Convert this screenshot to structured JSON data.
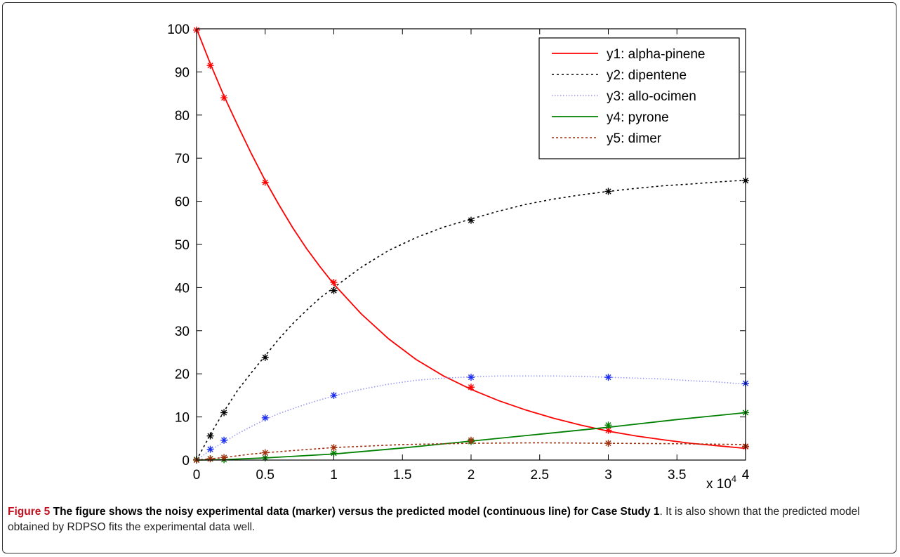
{
  "chart_data": {
    "type": "line",
    "title": "",
    "xlabel": "",
    "ylabel": "",
    "x_multiplier_label": "x 10",
    "x_multiplier_exp": "4",
    "xlim": [
      0,
      4
    ],
    "ylim": [
      0,
      100
    ],
    "xticks": [
      "0",
      "0.5",
      "1",
      "1.5",
      "2",
      "2.5",
      "3",
      "3.5",
      "4"
    ],
    "yticks": [
      "0",
      "10",
      "20",
      "30",
      "40",
      "50",
      "60",
      "70",
      "80",
      "90",
      "100"
    ],
    "legend_position": "top-right",
    "marker_x": [
      0,
      0.1,
      0.2,
      0.5,
      1,
      2,
      3,
      4
    ],
    "series": [
      {
        "name": "y1: alpha-pinene",
        "color": "#ff0000",
        "line_style": "solid",
        "model_x": [
          0,
          0.1,
          0.2,
          0.3,
          0.4,
          0.5,
          0.6,
          0.7,
          0.8,
          0.9,
          1.0,
          1.2,
          1.4,
          1.6,
          1.8,
          2.0,
          2.2,
          2.4,
          2.6,
          2.8,
          3.0,
          3.2,
          3.4,
          3.6,
          3.8,
          4.0
        ],
        "model_y": [
          100,
          91.9,
          84.4,
          77.6,
          71.0,
          64.8,
          59.2,
          53.9,
          49.1,
          44.8,
          40.8,
          33.9,
          28.1,
          23.3,
          19.5,
          16.4,
          13.8,
          11.6,
          9.7,
          8.1,
          6.7,
          5.6,
          4.7,
          3.9,
          3.3,
          2.7
        ],
        "marker_y": [
          99.7,
          91.5,
          84.0,
          64.4,
          41.2,
          16.9,
          6.9,
          3.1
        ]
      },
      {
        "name": "y2: dipentene",
        "color": "#000000",
        "line_style": "dotted",
        "model_x": [
          0,
          0.1,
          0.2,
          0.3,
          0.4,
          0.5,
          0.6,
          0.7,
          0.8,
          0.9,
          1.0,
          1.2,
          1.4,
          1.6,
          1.8,
          2.0,
          2.2,
          2.4,
          2.6,
          2.8,
          3.0,
          3.2,
          3.4,
          3.6,
          3.8,
          4.0
        ],
        "model_y": [
          0,
          5.9,
          11.3,
          16.2,
          20.3,
          24.2,
          28.1,
          31.6,
          34.7,
          37.6,
          40.0,
          44.7,
          48.6,
          51.6,
          54.0,
          55.9,
          57.7,
          59.3,
          60.5,
          61.5,
          62.3,
          63.0,
          63.6,
          64.0,
          64.5,
          64.9
        ],
        "marker_y": [
          0.1,
          5.6,
          11.0,
          23.8,
          39.3,
          55.6,
          62.3,
          64.8
        ]
      },
      {
        "name": "y3: allo-ocimen",
        "color": "#9999ee",
        "marker_color": "#1b2df2",
        "line_style": "dotted",
        "model_x": [
          0,
          0.1,
          0.2,
          0.3,
          0.4,
          0.5,
          0.6,
          0.8,
          1.0,
          1.2,
          1.4,
          1.6,
          1.8,
          2.0,
          2.2,
          2.4,
          2.6,
          2.8,
          3.0,
          3.2,
          3.4,
          3.6,
          3.8,
          4.0
        ],
        "model_y": [
          0,
          2.3,
          4.2,
          6.1,
          7.8,
          9.4,
          10.8,
          13.0,
          14.9,
          16.4,
          17.6,
          18.5,
          19.0,
          19.3,
          19.5,
          19.5,
          19.5,
          19.4,
          19.2,
          19.0,
          18.8,
          18.4,
          18.1,
          17.6
        ],
        "marker_y": [
          0.1,
          2.5,
          4.6,
          9.8,
          15.0,
          19.2,
          19.2,
          17.8
        ]
      },
      {
        "name": "y4: pyrone",
        "color": "#008000",
        "line_style": "solid",
        "model_x": [
          0,
          0.2,
          0.5,
          1.0,
          1.5,
          2.0,
          2.5,
          3.0,
          3.5,
          4.0
        ],
        "model_y": [
          0,
          0.1,
          0.5,
          1.4,
          2.8,
          4.4,
          6.0,
          7.6,
          9.4,
          11.0
        ],
        "marker_y": [
          0.1,
          0.3,
          0.1,
          0.5,
          1.6,
          4.3,
          8.1,
          11.0
        ]
      },
      {
        "name": "y5: dimer",
        "color": "#a0300e",
        "line_style": "dotted",
        "model_x": [
          0,
          0.1,
          0.2,
          0.3,
          0.4,
          0.5,
          0.7,
          1.0,
          1.5,
          2.0,
          2.5,
          3.0,
          3.5,
          4.0
        ],
        "model_y": [
          0,
          0.3,
          0.6,
          1.0,
          1.4,
          1.7,
          2.2,
          2.9,
          3.6,
          3.9,
          4.0,
          3.9,
          3.8,
          3.6
        ],
        "marker_y": [
          0,
          0.3,
          0.6,
          1.7,
          2.9,
          4.6,
          3.9,
          3.2
        ]
      }
    ]
  },
  "caption": {
    "label": "Figure 5",
    "title": "The figure shows the noisy experimental data (marker) versus the predicted model (continuous line) for Case Study 1",
    "body": ". It is also shown that the predicted model obtained by RDPSO fits the experimental data well."
  }
}
